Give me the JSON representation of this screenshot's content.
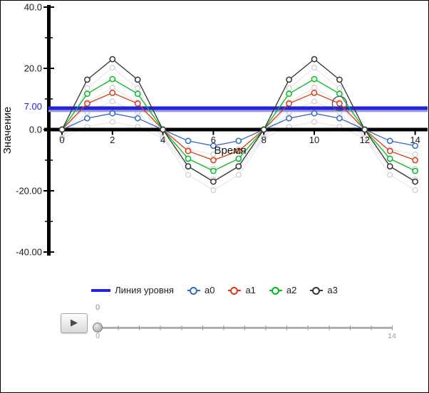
{
  "chart_data": {
    "type": "line",
    "title": "",
    "x": [
      0,
      1,
      2,
      3,
      4,
      5,
      6,
      7,
      8,
      9,
      10,
      11,
      12,
      13,
      14
    ],
    "series": [
      {
        "name": "a0",
        "color": "#3366cc",
        "values": [
          0,
          3.7,
          5.3,
          3.7,
          0,
          -3.7,
          -5.3,
          -3.7,
          0,
          3.7,
          5.3,
          3.7,
          0,
          -3.7,
          -5.3
        ]
      },
      {
        "name": "a1",
        "color": "#dc3912",
        "values": [
          0,
          8.5,
          12,
          8.5,
          0,
          -7,
          -10,
          -7,
          0,
          8.5,
          12,
          8.5,
          0,
          -7,
          -10
        ]
      },
      {
        "name": "a2",
        "color": "#00bb22",
        "values": [
          0,
          11.7,
          16.5,
          11.7,
          0,
          -9.5,
          -13.5,
          -9.5,
          0,
          11.7,
          16.5,
          11.7,
          0,
          -9.5,
          -13.5
        ]
      },
      {
        "name": "a3",
        "color": "#333333",
        "values": [
          0,
          16.3,
          23,
          16.3,
          0,
          -12,
          -17,
          -12,
          0,
          16.3,
          23,
          16.3,
          0,
          -12,
          -17
        ]
      }
    ],
    "level_line": {
      "name": "Линия уровня",
      "value": 7,
      "axis_label": "7.00",
      "color": "#2323d9"
    },
    "selected_point": {
      "series": "a1",
      "x": 11
    },
    "x_axis": {
      "title": "Время",
      "ticks": [
        {
          "v": 0,
          "label": "0"
        },
        {
          "v": 2,
          "label": "2"
        },
        {
          "v": 4,
          "label": "4"
        },
        {
          "v": 6,
          "label": "6"
        },
        {
          "v": 8,
          "label": "8"
        },
        {
          "v": 10,
          "label": "10"
        },
        {
          "v": 12,
          "label": "12"
        },
        {
          "v": 14,
          "label": "14"
        }
      ]
    },
    "y_axis": {
      "title": "Значение",
      "ticks": [
        {
          "v": 40,
          "label": "40.0"
        },
        {
          "v": 20,
          "label": "20.0"
        },
        {
          "v": 0,
          "label": "0.0"
        },
        {
          "v": -20,
          "label": "-20.00"
        },
        {
          "v": -40,
          "label": "-40.00"
        }
      ],
      "minor_ticks": [
        30,
        10,
        -10,
        -30
      ]
    },
    "xlim": [
      0,
      14.2
    ],
    "ylim": [
      -40,
      40
    ],
    "grid": false,
    "legend_position": "bottom",
    "marker_style": "open-circle"
  },
  "legend": {
    "items": [
      {
        "label": "Линия уровня",
        "type": "line",
        "color": "#2323d9"
      },
      {
        "label": "a0",
        "type": "point",
        "color": "#3366cc"
      },
      {
        "label": "a1",
        "type": "point",
        "color": "#dc3912"
      },
      {
        "label": "a2",
        "type": "point",
        "color": "#00bb22"
      },
      {
        "label": "a3",
        "type": "point",
        "color": "#333333"
      }
    ]
  },
  "player": {
    "play_label": "▶",
    "slider": {
      "current_value": "0",
      "min_label": "0",
      "max_label": "14"
    }
  }
}
